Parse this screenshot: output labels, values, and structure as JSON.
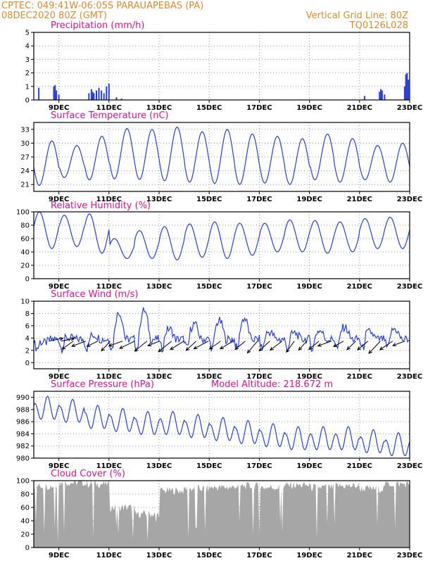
{
  "header": {
    "line1_left": "CPTEC:   049:41W-06:05S   PARAUAPEBAS (PA)",
    "line2_left": "08DEC2020 80Z (GMT)",
    "line1_right": "Vertical Grid Line: 80Z",
    "line2_right": "TQ0126L028"
  },
  "colors": {
    "header": "#e08a2c",
    "title": "#e0109a",
    "series": "#2640e0",
    "cloud": "#a6a6a6",
    "grid": "#9a9a9a"
  },
  "x_axis": {
    "ticks": [
      "9DEC",
      "11DEC",
      "13DEC",
      "15DEC",
      "17DEC",
      "19DEC",
      "21DEC",
      "23DEC"
    ],
    "tick_days": [
      9,
      11,
      13,
      15,
      17,
      19,
      21,
      23
    ],
    "start_day": 8.0,
    "end_day": 23.0
  },
  "chart_data": [
    {
      "key": "precip",
      "type": "bar",
      "title": "Precipitation (mm/h)",
      "ylim": [
        0,
        5
      ],
      "yticks": [
        0,
        1,
        2,
        3,
        4,
        5
      ],
      "grid": true,
      "x": [
        8.2,
        8.8,
        8.85,
        8.9,
        9.0,
        10.2,
        10.3,
        10.35,
        10.4,
        10.5,
        10.6,
        10.7,
        10.8,
        10.9,
        11.0,
        11.3,
        11.5,
        21.2,
        21.8,
        21.85,
        21.9,
        22.0,
        22.8,
        22.85,
        22.9,
        22.95
      ],
      "values": [
        0.9,
        1.0,
        1.1,
        0.7,
        0.4,
        0.5,
        0.8,
        0.6,
        0.5,
        0.7,
        0.9,
        0.7,
        0.5,
        1.0,
        1.2,
        0.2,
        0.1,
        0.3,
        0.6,
        0.8,
        0.7,
        0.4,
        1.0,
        1.9,
        2.0,
        1.5
      ]
    },
    {
      "key": "temp",
      "type": "line",
      "title": "Surface Temperature (nC)",
      "ylim": [
        19.5,
        34.5
      ],
      "yticks": [
        21,
        24,
        27,
        30,
        33
      ],
      "grid": true,
      "diurnal": {
        "min": [
          20.8,
          22.5,
          22.0,
          22.2,
          22.1,
          21.8,
          21.5,
          21.2,
          21.0,
          21.3,
          21.0,
          22.0,
          21.5,
          22.0,
          21.5
        ],
        "max": [
          30.5,
          29.5,
          31.5,
          33.2,
          33.0,
          33.5,
          32.5,
          33.0,
          32.0,
          31.5,
          31.0,
          32.0,
          31.0,
          29.5,
          30.0
        ]
      }
    },
    {
      "key": "rh",
      "type": "line",
      "title": "Relative Humidity (%)",
      "ylim": [
        0,
        100
      ],
      "yticks": [
        0,
        20,
        40,
        60,
        80,
        100
      ],
      "grid": true,
      "diurnal": {
        "min": [
          45,
          48,
          38,
          30,
          30,
          28,
          32,
          30,
          35,
          40,
          40,
          38,
          40,
          45,
          45
        ],
        "max": [
          100,
          95,
          97,
          60,
          72,
          78,
          82,
          85,
          83,
          83,
          88,
          87,
          85,
          90,
          92
        ]
      }
    },
    {
      "key": "wind",
      "type": "line",
      "title": "Surface Wind (m/s)",
      "ylim": [
        -1,
        10
      ],
      "yticks": [
        0,
        2,
        4,
        6,
        8,
        10
      ],
      "grid": true,
      "arrows": true,
      "daily_peak": [
        3.2,
        4.0,
        4.5,
        8.2,
        8.5,
        5.5,
        6.3,
        6.8,
        7.2,
        5.0,
        4.8,
        5.2,
        5.8,
        5.0,
        5.5
      ]
    },
    {
      "key": "pres",
      "type": "line",
      "title": "Surface Pressure (hPa)",
      "subtitle": "Model Altitude: 218.672 m",
      "ylim": [
        980,
        991
      ],
      "yticks": [
        980,
        982,
        984,
        986,
        988,
        990
      ],
      "grid": true,
      "daily_mean": [
        988.0,
        987.5,
        986.5,
        986.0,
        985.5,
        985.5,
        985.0,
        984.5,
        984.0,
        983.5,
        983.0,
        983.0,
        983.0,
        982.5,
        982.0
      ]
    },
    {
      "key": "cloud",
      "type": "area",
      "title": "Cloud Cover (%)",
      "ylim": [
        0,
        100
      ],
      "yticks": [
        0,
        20,
        40,
        60,
        80,
        100
      ],
      "grid": true,
      "daily_level": [
        92,
        97,
        95,
        60,
        50,
        85,
        88,
        90,
        92,
        90,
        93,
        90,
        92,
        88,
        95
      ]
    }
  ]
}
